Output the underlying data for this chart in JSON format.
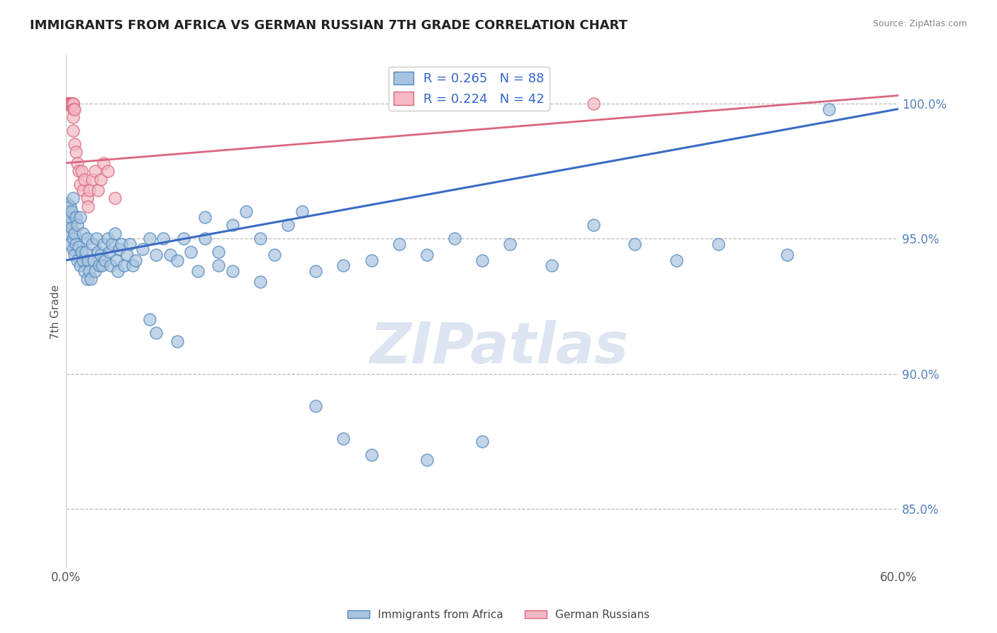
{
  "title": "IMMIGRANTS FROM AFRICA VS GERMAN RUSSIAN 7TH GRADE CORRELATION CHART",
  "source": "Source: ZipAtlas.com",
  "ylabel": "7th Grade",
  "xlim": [
    0.0,
    0.6
  ],
  "ylim": [
    0.828,
    1.018
  ],
  "ytick_positions": [
    0.85,
    0.9,
    0.95,
    1.0
  ],
  "ytick_labels": [
    "85.0%",
    "90.0%",
    "95.0%",
    "100.0%"
  ],
  "blue_color": "#a8c4e0",
  "blue_edge": "#5588bb",
  "pink_color": "#f5b8c4",
  "pink_edge": "#d96680",
  "trend_blue": "#3a6bc4",
  "trend_pink": "#d96680",
  "r_blue": 0.265,
  "n_blue": 88,
  "r_pink": 0.224,
  "n_pink": 42,
  "legend_label_blue": "Immigrants from Africa",
  "legend_label_pink": "German Russians",
  "watermark": "ZIPatlas",
  "watermark_color": "#c5d5e8",
  "blue_x": [
    0.001,
    0.001,
    0.002,
    0.002,
    0.002,
    0.003,
    0.003,
    0.003,
    0.004,
    0.004,
    0.005,
    0.005,
    0.005,
    0.006,
    0.006,
    0.007,
    0.007,
    0.008,
    0.008,
    0.009,
    0.01,
    0.01,
    0.011,
    0.012,
    0.012,
    0.013,
    0.014,
    0.015,
    0.015,
    0.016,
    0.017,
    0.018,
    0.019,
    0.02,
    0.021,
    0.022,
    0.023,
    0.024,
    0.025,
    0.026,
    0.027,
    0.028,
    0.03,
    0.031,
    0.032,
    0.033,
    0.035,
    0.036,
    0.037,
    0.038,
    0.04,
    0.042,
    0.044,
    0.046,
    0.048,
    0.05,
    0.055,
    0.06,
    0.065,
    0.07,
    0.075,
    0.08,
    0.085,
    0.09,
    0.095,
    0.1,
    0.11,
    0.12,
    0.13,
    0.14,
    0.15,
    0.16,
    0.17,
    0.18,
    0.2,
    0.22,
    0.24,
    0.26,
    0.28,
    0.3,
    0.32,
    0.35,
    0.38,
    0.41,
    0.44,
    0.47,
    0.52,
    0.55
  ],
  "blue_y": [
    0.963,
    0.957,
    0.96,
    0.955,
    0.952,
    0.958,
    0.962,
    0.948,
    0.954,
    0.96,
    0.965,
    0.95,
    0.946,
    0.952,
    0.944,
    0.948,
    0.958,
    0.942,
    0.955,
    0.947,
    0.94,
    0.958,
    0.945,
    0.942,
    0.952,
    0.938,
    0.945,
    0.95,
    0.935,
    0.942,
    0.938,
    0.935,
    0.948,
    0.942,
    0.938,
    0.95,
    0.945,
    0.94,
    0.944,
    0.94,
    0.948,
    0.942,
    0.95,
    0.945,
    0.94,
    0.948,
    0.952,
    0.942,
    0.938,
    0.946,
    0.948,
    0.94,
    0.944,
    0.948,
    0.94,
    0.942,
    0.946,
    0.95,
    0.944,
    0.95,
    0.944,
    0.942,
    0.95,
    0.945,
    0.938,
    0.958,
    0.945,
    0.955,
    0.96,
    0.95,
    0.944,
    0.955,
    0.96,
    0.938,
    0.94,
    0.942,
    0.948,
    0.944,
    0.95,
    0.942,
    0.948,
    0.94,
    0.955,
    0.948,
    0.942,
    0.948,
    0.944,
    0.998
  ],
  "blue_y_outliers_x": [
    0.06,
    0.065,
    0.08,
    0.1,
    0.11,
    0.12,
    0.14,
    0.18,
    0.2,
    0.22,
    0.26,
    0.3
  ],
  "blue_y_outliers_y": [
    0.92,
    0.915,
    0.912,
    0.95,
    0.94,
    0.938,
    0.934,
    0.888,
    0.876,
    0.87,
    0.868,
    0.875
  ],
  "pink_x": [
    0.001,
    0.001,
    0.002,
    0.002,
    0.002,
    0.003,
    0.003,
    0.003,
    0.003,
    0.003,
    0.004,
    0.004,
    0.004,
    0.004,
    0.004,
    0.004,
    0.005,
    0.005,
    0.005,
    0.005,
    0.005,
    0.006,
    0.006,
    0.007,
    0.008,
    0.009,
    0.01,
    0.011,
    0.012,
    0.013,
    0.015,
    0.016,
    0.017,
    0.019,
    0.021,
    0.023,
    0.025,
    0.027,
    0.03,
    0.035,
    0.34,
    0.38
  ],
  "pink_y": [
    1.0,
    1.0,
    1.0,
    1.0,
    1.0,
    1.0,
    1.0,
    1.0,
    1.0,
    1.0,
    1.0,
    1.0,
    1.0,
    1.0,
    1.0,
    1.0,
    1.0,
    1.0,
    0.998,
    0.995,
    0.99,
    0.985,
    0.998,
    0.982,
    0.978,
    0.975,
    0.97,
    0.975,
    0.968,
    0.972,
    0.965,
    0.962,
    0.968,
    0.972,
    0.975,
    0.968,
    0.972,
    0.978,
    0.975,
    0.965,
    1.0,
    1.0
  ]
}
